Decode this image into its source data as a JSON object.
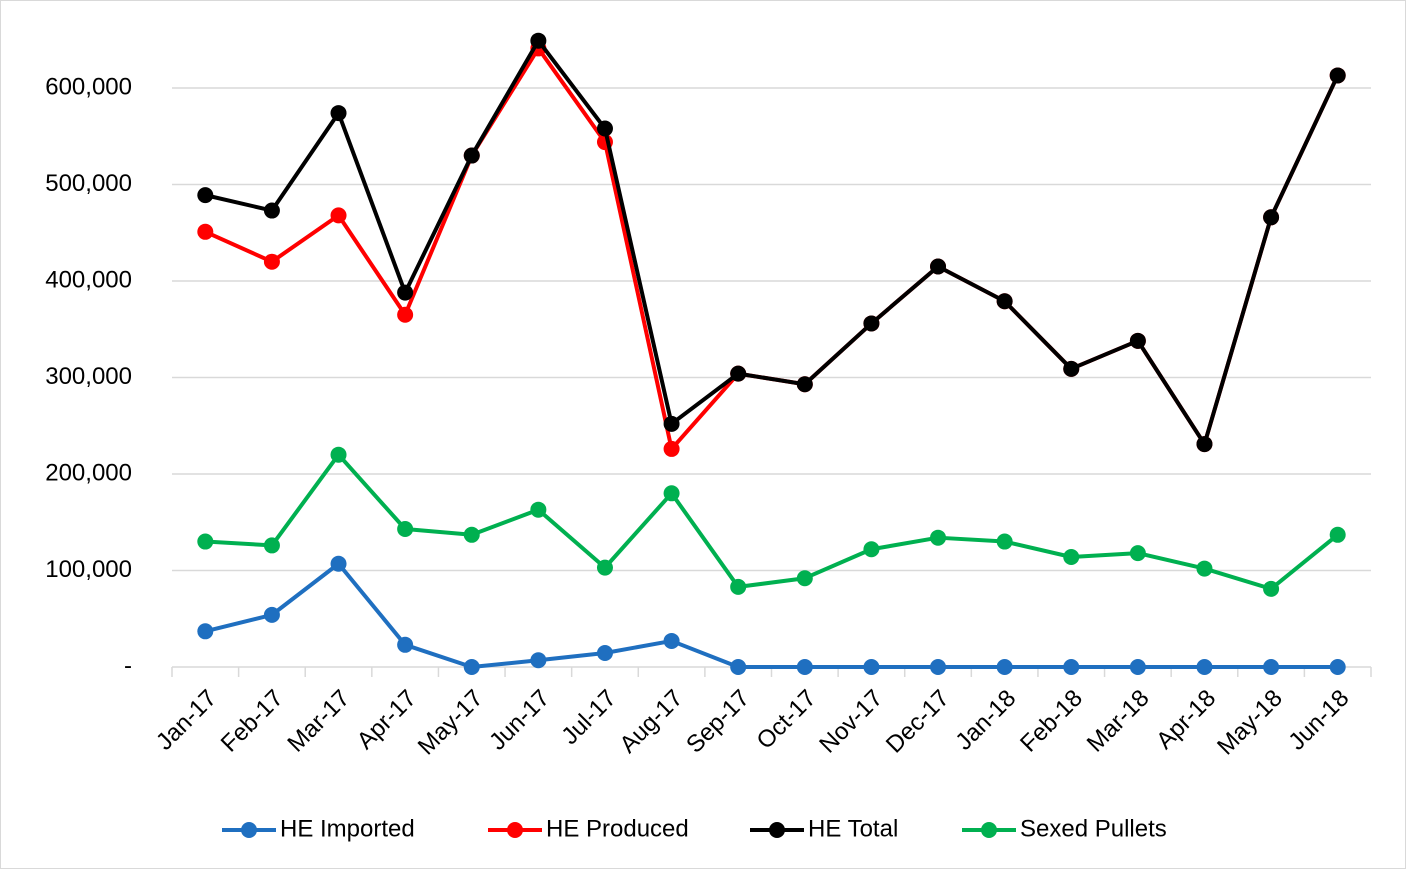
{
  "chart_data": {
    "type": "line",
    "categories": [
      "Jan-17",
      "Feb-17",
      "Mar-17",
      "Apr-17",
      "May-17",
      "Jun-17",
      "Jul-17",
      "Aug-17",
      "Sep-17",
      "Oct-17",
      "Nov-17",
      "Dec-17",
      "Jan-18",
      "Feb-18",
      "Mar-18",
      "Apr-18",
      "May-18",
      "Jun-18"
    ],
    "series": [
      {
        "name": "HE Imported",
        "color": "#1f6fc0",
        "values": [
          37000,
          54000,
          107000,
          23000,
          0,
          7000,
          14500,
          27000,
          0,
          0,
          0,
          0,
          0,
          0,
          0,
          0,
          0,
          0
        ]
      },
      {
        "name": "HE Produced",
        "color": "#ff0000",
        "values": [
          451000,
          420000,
          468000,
          365000,
          530000,
          641000,
          544000,
          226000,
          304000,
          293000,
          356000,
          415000,
          379000,
          309000,
          338000,
          231000,
          466000,
          613000
        ]
      },
      {
        "name": "HE Total",
        "color": "#000000",
        "values": [
          489000,
          473000,
          574000,
          388000,
          530000,
          649000,
          558000,
          252000,
          304000,
          293000,
          356000,
          415000,
          379000,
          309000,
          338000,
          231000,
          466000,
          613000
        ]
      },
      {
        "name": "Sexed Pullets",
        "color": "#00b050",
        "values": [
          130000,
          126000,
          220000,
          143000,
          137000,
          163000,
          103000,
          180000,
          83000,
          92000,
          122000,
          134000,
          130000,
          114000,
          118000,
          102000,
          81000,
          137000
        ]
      }
    ],
    "ylim": [
      0,
      650000
    ],
    "yticks": [
      {
        "value": 0,
        "label": "-"
      },
      {
        "value": 100000,
        "label": "100,000"
      },
      {
        "value": 200000,
        "label": "200,000"
      },
      {
        "value": 300000,
        "label": "300,000"
      },
      {
        "value": 400000,
        "label": "400,000"
      },
      {
        "value": 500000,
        "label": "500,000"
      },
      {
        "value": 600000,
        "label": "600,000"
      }
    ],
    "grid": true,
    "legend": "bottom"
  }
}
